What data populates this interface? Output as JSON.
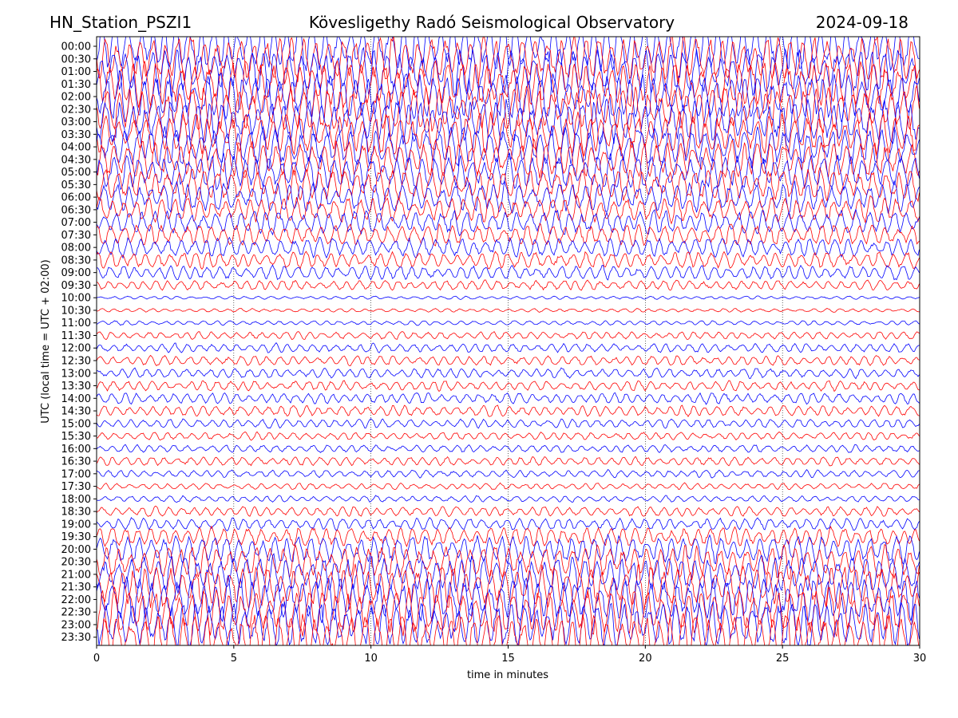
{
  "header": {
    "station": "HN_Station_PSZI1",
    "title": "Kövesligethy Radó Seismological Observatory",
    "date": "2024-09-18"
  },
  "chart_data": {
    "type": "line",
    "title": "Kövesligethy Radó Seismological Observatory",
    "xlabel": "time in minutes",
    "ylabel": "UTC (local time = UTC + 02:00)",
    "xlim": [
      0,
      30
    ],
    "x_ticks": [
      "0",
      "5",
      "10",
      "15",
      "20",
      "25",
      "30"
    ],
    "x_tick_values": [
      0,
      5,
      10,
      15,
      20,
      25,
      30
    ],
    "vertical_gridlines_at": [
      5,
      10,
      15,
      20,
      25
    ],
    "grid": "vertical dotted",
    "trace_colors": [
      "#0000ff",
      "#ff0000"
    ],
    "rows": [
      "00:00",
      "00:30",
      "01:00",
      "01:30",
      "02:00",
      "02:30",
      "03:00",
      "03:30",
      "04:00",
      "04:30",
      "05:00",
      "05:30",
      "06:00",
      "06:30",
      "07:00",
      "07:30",
      "08:00",
      "08:30",
      "09:00",
      "09:30",
      "10:00",
      "10:30",
      "11:00",
      "11:30",
      "12:00",
      "12:30",
      "13:00",
      "13:30",
      "14:00",
      "14:30",
      "15:00",
      "15:30",
      "16:00",
      "16:30",
      "17:00",
      "17:30",
      "18:00",
      "18:30",
      "19:00",
      "19:30",
      "20:00",
      "20:30",
      "21:00",
      "21:30",
      "22:00",
      "22:30",
      "23:00",
      "23:30"
    ],
    "relative_amplitude": [
      1.0,
      1.0,
      1.0,
      1.0,
      1.0,
      0.95,
      0.95,
      0.9,
      0.85,
      0.8,
      0.75,
      0.7,
      0.65,
      0.55,
      0.5,
      0.45,
      0.4,
      0.35,
      0.3,
      0.2,
      0.05,
      0.06,
      0.08,
      0.15,
      0.18,
      0.2,
      0.2,
      0.2,
      0.22,
      0.22,
      0.18,
      0.15,
      0.15,
      0.18,
      0.15,
      0.12,
      0.12,
      0.2,
      0.25,
      0.4,
      0.6,
      0.7,
      0.8,
      0.9,
      0.95,
      1.0,
      1.0,
      1.0
    ]
  }
}
